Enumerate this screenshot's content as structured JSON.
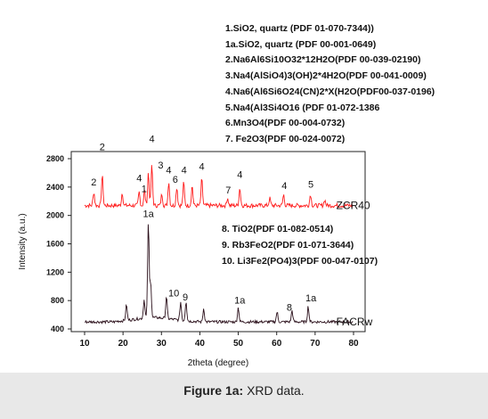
{
  "chart_data": {
    "type": "line",
    "xlabel": "2theta (degree)",
    "ylabel": "Intensity (a.u.)",
    "xlim": [
      5,
      82
    ],
    "ylim": [
      300,
      3000
    ],
    "xticks": [
      10,
      20,
      30,
      40,
      50,
      60,
      70,
      80
    ],
    "yticks": [
      400,
      800,
      1200,
      1600,
      2000,
      2400,
      2800
    ],
    "series": [
      {
        "name": "ZCR40",
        "color": "#ff1a1a",
        "baseline": 2140,
        "peaks": [
          {
            "x": 12.4,
            "y": 2330
          },
          {
            "x": 14.6,
            "y": 2560
          },
          {
            "x": 19.8,
            "y": 2320
          },
          {
            "x": 24.2,
            "y": 2330
          },
          {
            "x": 25.6,
            "y": 2350
          },
          {
            "x": 26.6,
            "y": 2600
          },
          {
            "x": 27.5,
            "y": 2700
          },
          {
            "x": 30.1,
            "y": 2300
          },
          {
            "x": 31.9,
            "y": 2480
          },
          {
            "x": 34.0,
            "y": 2400
          },
          {
            "x": 35.8,
            "y": 2460
          },
          {
            "x": 38.0,
            "y": 2420
          },
          {
            "x": 40.5,
            "y": 2510
          },
          {
            "x": 47.2,
            "y": 2250
          },
          {
            "x": 50.4,
            "y": 2390
          },
          {
            "x": 58.2,
            "y": 2240
          },
          {
            "x": 61.8,
            "y": 2290
          },
          {
            "x": 68.8,
            "y": 2300
          },
          {
            "x": 72.5,
            "y": 2220
          }
        ]
      },
      {
        "name": "FACRw",
        "color": "#2a0f1a",
        "baseline": 500,
        "peaks": [
          {
            "x": 20.9,
            "y": 720
          },
          {
            "x": 25.5,
            "y": 760
          },
          {
            "x": 26.6,
            "y": 1850
          },
          {
            "x": 27.2,
            "y": 1000
          },
          {
            "x": 31.3,
            "y": 810
          },
          {
            "x": 35.0,
            "y": 760
          },
          {
            "x": 36.4,
            "y": 780
          },
          {
            "x": 41.0,
            "y": 690
          },
          {
            "x": 50.0,
            "y": 700
          },
          {
            "x": 60.1,
            "y": 640
          },
          {
            "x": 64.0,
            "y": 660
          },
          {
            "x": 68.2,
            "y": 720
          }
        ]
      }
    ],
    "peak_labels": [
      {
        "text": "2",
        "x": 14.6,
        "y": 2920
      },
      {
        "text": "4",
        "x": 27.5,
        "y": 3030
      },
      {
        "text": "3",
        "x": 29.8,
        "y": 2660
      },
      {
        "text": "4",
        "x": 31.9,
        "y": 2590
      },
      {
        "text": "4",
        "x": 35.9,
        "y": 2590
      },
      {
        "text": "6",
        "x": 33.6,
        "y": 2460
      },
      {
        "text": "4",
        "x": 40.5,
        "y": 2640
      },
      {
        "text": "2",
        "x": 12.4,
        "y": 2420
      },
      {
        "text": "4",
        "x": 24.2,
        "y": 2480
      },
      {
        "text": "1",
        "x": 25.5,
        "y": 2330
      },
      {
        "text": "7",
        "x": 47.4,
        "y": 2310
      },
      {
        "text": "4",
        "x": 50.4,
        "y": 2530
      },
      {
        "text": "4",
        "x": 62.0,
        "y": 2370
      },
      {
        "text": "5",
        "x": 68.9,
        "y": 2390
      },
      {
        "text": "1a",
        "x": 26.6,
        "y": 1980
      },
      {
        "text": "10",
        "x": 33.2,
        "y": 860
      },
      {
        "text": "9",
        "x": 36.2,
        "y": 800
      },
      {
        "text": "1a",
        "x": 50.4,
        "y": 760
      },
      {
        "text": "8",
        "x": 63.3,
        "y": 660
      },
      {
        "text": "1a",
        "x": 68.9,
        "y": 790
      }
    ],
    "series_labels": [
      {
        "text": "ZCR40",
        "x": 75.5,
        "y": 2140
      },
      {
        "text": "FACRw",
        "x": 75.5,
        "y": 500
      }
    ]
  },
  "legend_top": [
    "1.SiO2, quartz (PDF 01-070-7344))",
    "1a.SiO2, quartz (PDF 00-001-0649)",
    "2.Na6Al6Si10O32*12H2O(PDF 00-039-02190)",
    "3.Na4(AlSiO4)3(OH)2*4H2O(PDF 00-041-0009)",
    "4.Na6(Al6Si6O24(CN)2*X(H2O(PDF00-037-0196)",
    "5.Na4(Al3Si4O16 (PDF 01-072-1386",
    "6.Mn3O4(PDF 00-004-0732)",
    "7. Fe2O3(PDF 00-024-0072)"
  ],
  "legend_bottom": [
    "8. TiO2(PDF 01-082-0514)",
    "9. Rb3FeO2(PDF 01-071-3644)",
    "10. Li3Fe2(PO4)3(PDF 00-047-0107)"
  ],
  "caption": {
    "bold": "Figure 1a:",
    "text": " XRD data."
  }
}
